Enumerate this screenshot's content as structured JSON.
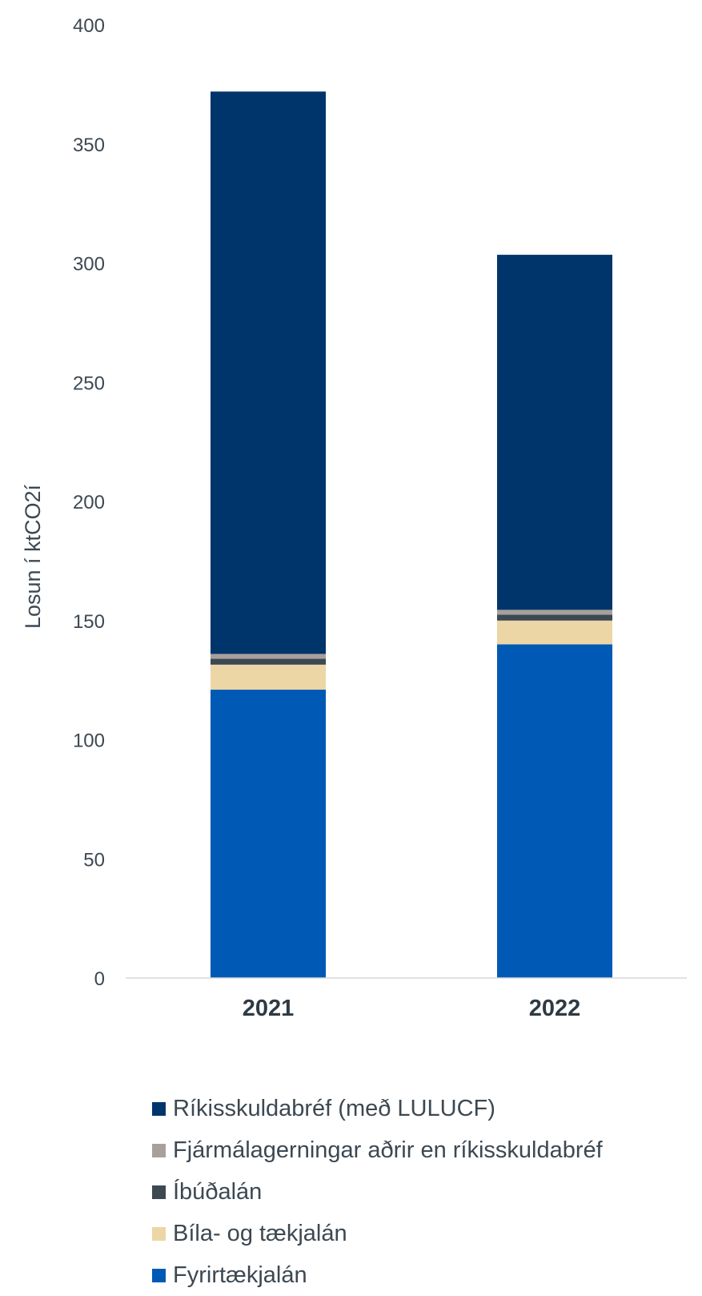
{
  "chart_data": {
    "type": "bar",
    "stacked": true,
    "categories": [
      "2021",
      "2022"
    ],
    "ylabel": "Losun í ktCO2í",
    "ylim": [
      0,
      400
    ],
    "yticks": [
      0,
      50,
      100,
      150,
      200,
      250,
      300,
      350,
      400
    ],
    "grid": false,
    "legend_position": "bottom",
    "series": [
      {
        "name": "Fyrirtækjalán",
        "color": "#005ab5",
        "values": [
          121,
          140
        ]
      },
      {
        "name": "Bíla- og tækjalán",
        "color": "#ecd6a6",
        "values": [
          10.5,
          10
        ]
      },
      {
        "name": "Íbúðalán",
        "color": "#3c4852",
        "values": [
          2.5,
          2.5
        ]
      },
      {
        "name": "Fjármálagerningar aðrir en ríkisskuldabréf",
        "color": "#a8a09a",
        "values": [
          2,
          2
        ]
      },
      {
        "name": "Ríkisskuldabréf (með LULUCF)",
        "color": "#00356b",
        "values": [
          236,
          149
        ]
      }
    ]
  },
  "legend_order": [
    4,
    3,
    2,
    1,
    0
  ]
}
